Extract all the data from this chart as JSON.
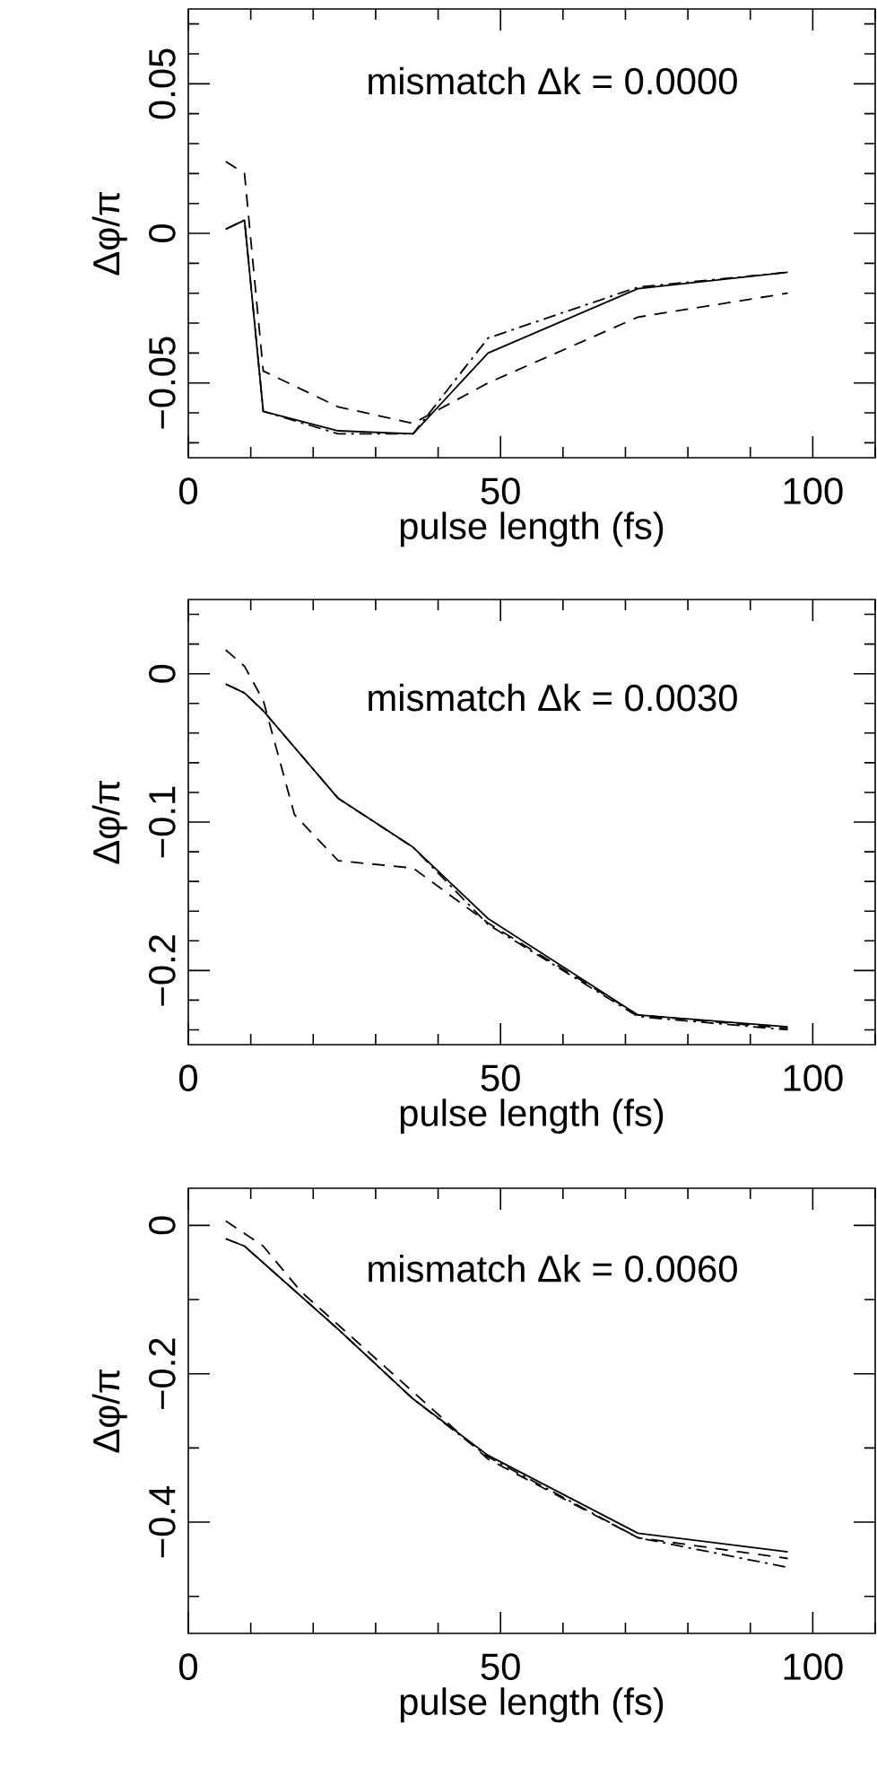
{
  "chart_data": [
    {
      "type": "line",
      "xlabel": "pulse length (fs)",
      "ylabel": "Δφ/π",
      "annotations": [
        "mismatch Δk = 0.0000"
      ],
      "xlim": [
        0,
        110
      ],
      "ylim": [
        -0.075,
        0.075
      ],
      "xticks": [
        0,
        {
          "value": 10,
          "label": null
        },
        {
          "value": 20,
          "label": null
        },
        {
          "value": 30,
          "label": null
        },
        {
          "value": 40,
          "label": null
        },
        50,
        {
          "value": 60,
          "label": null
        },
        {
          "value": 70,
          "label": null
        },
        {
          "value": 80,
          "label": null
        },
        {
          "value": 90,
          "label": null
        },
        100,
        {
          "value": 110,
          "label": null
        }
      ],
      "yticks": [
        {
          "value": -0.07,
          "label": null
        },
        {
          "value": -0.06,
          "label": null
        },
        {
          "value": -0.05,
          "label": "−0.05"
        },
        {
          "value": -0.04,
          "label": null
        },
        {
          "value": -0.03,
          "label": null
        },
        {
          "value": -0.02,
          "label": null
        },
        {
          "value": -0.01,
          "label": null
        },
        0,
        {
          "value": 0.01,
          "label": null
        },
        {
          "value": 0.02,
          "label": null
        },
        {
          "value": 0.03,
          "label": null
        },
        {
          "value": 0.04,
          "label": null
        },
        0.05,
        {
          "value": 0.06,
          "label": null
        },
        {
          "value": 0.07,
          "label": null
        }
      ],
      "series": [
        {
          "color": "#000000",
          "line_style": "solid",
          "x": [
            6,
            9,
            12,
            24,
            36,
            48,
            72,
            96
          ],
          "values": [
            0.0014,
            0.0044,
            -0.0595,
            -0.066,
            -0.067,
            -0.04,
            -0.0185,
            -0.013
          ]
        },
        {
          "color": "#000000",
          "line_style": "dashed",
          "x": [
            6,
            9,
            12,
            24,
            36,
            48,
            72,
            96
          ],
          "values": [
            0.024,
            0.02,
            -0.046,
            -0.058,
            -0.0635,
            -0.05,
            -0.028,
            -0.02
          ]
        },
        {
          "color": "#000000",
          "line_style": "dashdot",
          "x": [
            6,
            9,
            12,
            24,
            36,
            48,
            72,
            96
          ],
          "values": [
            0.0014,
            0.0044,
            -0.0595,
            -0.067,
            -0.067,
            -0.035,
            -0.018,
            -0.013
          ]
        }
      ]
    },
    {
      "type": "line",
      "xlabel": "pulse length (fs)",
      "ylabel": "Δφ/π",
      "annotations": [
        "mismatch Δk = 0.0030"
      ],
      "xlim": [
        0,
        110
      ],
      "ylim": [
        -0.25,
        0.05
      ],
      "xticks": [
        0,
        {
          "value": 10,
          "label": null
        },
        {
          "value": 20,
          "label": null
        },
        {
          "value": 30,
          "label": null
        },
        {
          "value": 40,
          "label": null
        },
        50,
        {
          "value": 60,
          "label": null
        },
        {
          "value": 70,
          "label": null
        },
        {
          "value": 80,
          "label": null
        },
        {
          "value": 90,
          "label": null
        },
        100,
        {
          "value": 110,
          "label": null
        }
      ],
      "yticks": [
        {
          "value": -0.24,
          "label": null
        },
        {
          "value": -0.22,
          "label": null
        },
        {
          "value": -0.2,
          "label": "−0.2"
        },
        {
          "value": -0.18,
          "label": null
        },
        {
          "value": -0.16,
          "label": null
        },
        {
          "value": -0.14,
          "label": null
        },
        {
          "value": -0.12,
          "label": null
        },
        {
          "value": -0.1,
          "label": "−0.1"
        },
        {
          "value": -0.08,
          "label": null
        },
        {
          "value": -0.06,
          "label": null
        },
        {
          "value": -0.04,
          "label": null
        },
        {
          "value": -0.02,
          "label": null
        },
        0,
        {
          "value": 0.02,
          "label": null
        },
        {
          "value": 0.04,
          "label": null
        }
      ],
      "series": [
        {
          "color": "#000000",
          "line_style": "solid",
          "x": [
            6,
            9,
            12,
            24,
            36,
            48,
            72,
            96
          ],
          "values": [
            -0.007,
            -0.013,
            -0.025,
            -0.084,
            -0.117,
            -0.165,
            -0.23,
            -0.238
          ]
        },
        {
          "color": "#000000",
          "line_style": "dashed",
          "x": [
            6,
            9,
            12,
            17,
            24,
            36,
            48,
            72,
            96
          ],
          "values": [
            0.016,
            0.005,
            -0.018,
            -0.095,
            -0.126,
            -0.131,
            -0.168,
            -0.23,
            -0.239
          ]
        },
        {
          "color": "#000000",
          "line_style": "dashdot",
          "x": [
            6,
            9,
            12,
            24,
            36,
            48,
            72,
            96
          ],
          "values": [
            -0.007,
            -0.013,
            -0.025,
            -0.084,
            -0.117,
            -0.169,
            -0.231,
            -0.24
          ]
        }
      ]
    },
    {
      "type": "line",
      "xlabel": "pulse length (fs)",
      "ylabel": "Δφ/π",
      "annotations": [
        "mismatch Δk = 0.0060"
      ],
      "xlim": [
        0,
        110
      ],
      "ylim": [
        -0.55,
        0.05
      ],
      "xticks": [
        0,
        {
          "value": 10,
          "label": null
        },
        {
          "value": 20,
          "label": null
        },
        {
          "value": 30,
          "label": null
        },
        {
          "value": 40,
          "label": null
        },
        50,
        {
          "value": 60,
          "label": null
        },
        {
          "value": 70,
          "label": null
        },
        {
          "value": 80,
          "label": null
        },
        {
          "value": 90,
          "label": null
        },
        100,
        {
          "value": 110,
          "label": null
        }
      ],
      "yticks": [
        {
          "value": -0.5,
          "label": null
        },
        {
          "value": -0.4,
          "label": "−0.4"
        },
        {
          "value": -0.3,
          "label": null
        },
        {
          "value": -0.2,
          "label": "−0.2"
        },
        {
          "value": -0.1,
          "label": null
        },
        0
      ],
      "series": [
        {
          "color": "#000000",
          "line_style": "solid",
          "x": [
            6,
            9,
            24,
            36,
            48,
            72,
            96
          ],
          "values": [
            -0.018,
            -0.028,
            -0.14,
            -0.234,
            -0.31,
            -0.415,
            -0.44
          ]
        },
        {
          "color": "#000000",
          "line_style": "dashed",
          "x": [
            6,
            12,
            18,
            48,
            72,
            96
          ],
          "values": [
            0.006,
            -0.028,
            -0.089,
            -0.315,
            -0.421,
            -0.449
          ]
        },
        {
          "color": "#000000",
          "line_style": "dashdot",
          "x": [
            6,
            9,
            24,
            36,
            48,
            72,
            96
          ],
          "values": [
            -0.018,
            -0.028,
            -0.14,
            -0.234,
            -0.312,
            -0.421,
            -0.461
          ]
        }
      ]
    }
  ]
}
